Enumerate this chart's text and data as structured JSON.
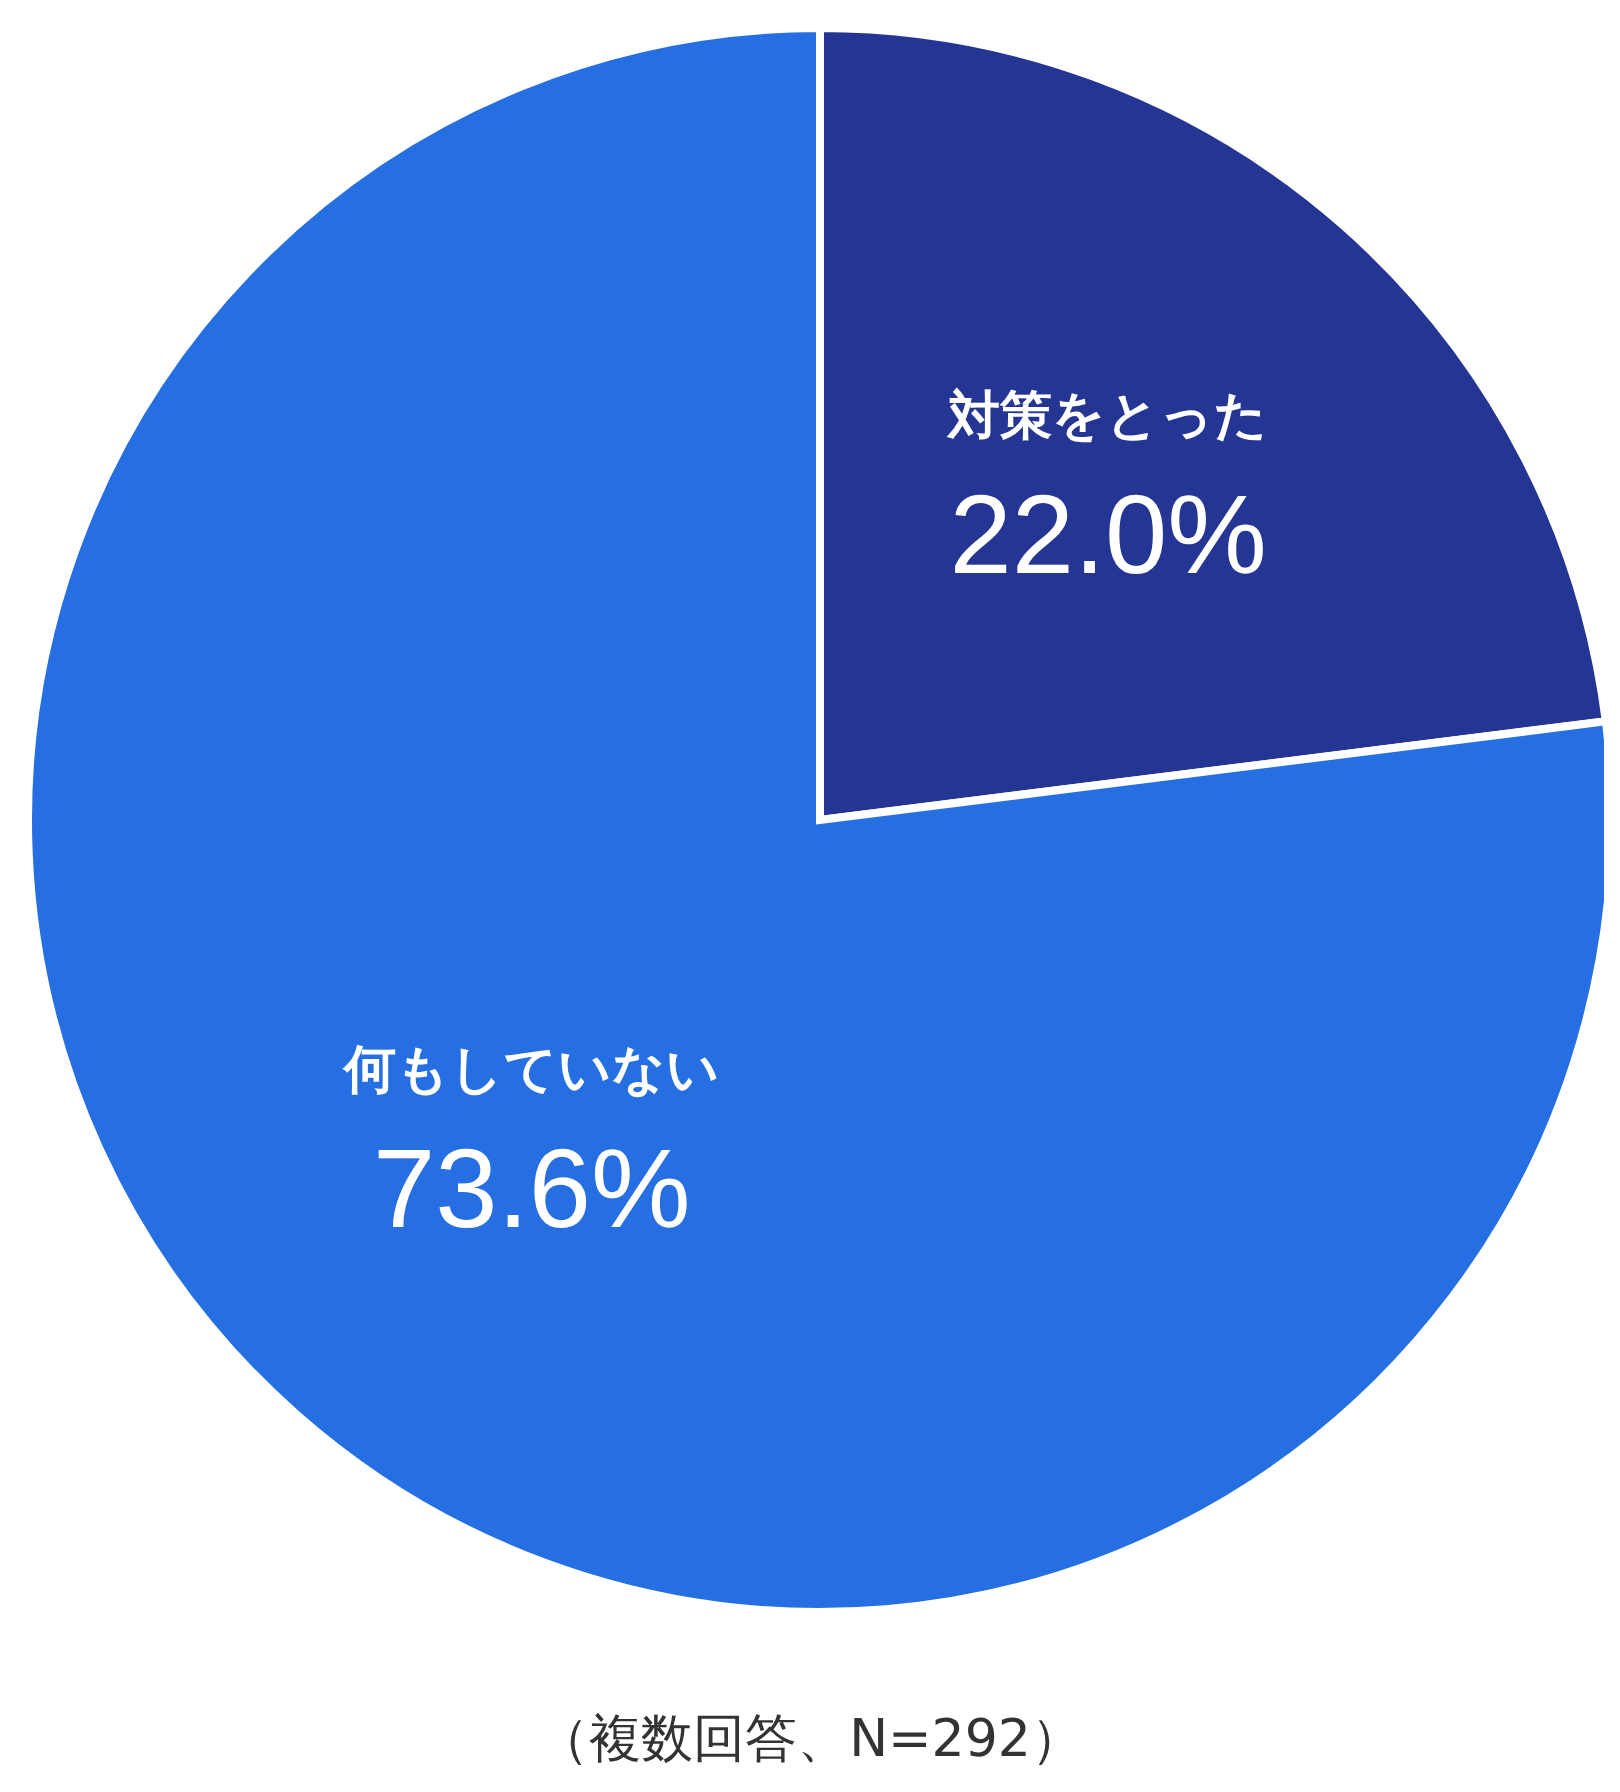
{
  "chart_data": {
    "type": "pie",
    "categories": [
      "対策をとった",
      "何もしていない"
    ],
    "values": [
      22.0,
      73.6
    ],
    "value_labels": [
      "22.0%",
      "73.6%"
    ],
    "colors": [
      "#243594",
      "#256fe3"
    ],
    "annotations": [
      "（複数回答、N=292）"
    ]
  }
}
